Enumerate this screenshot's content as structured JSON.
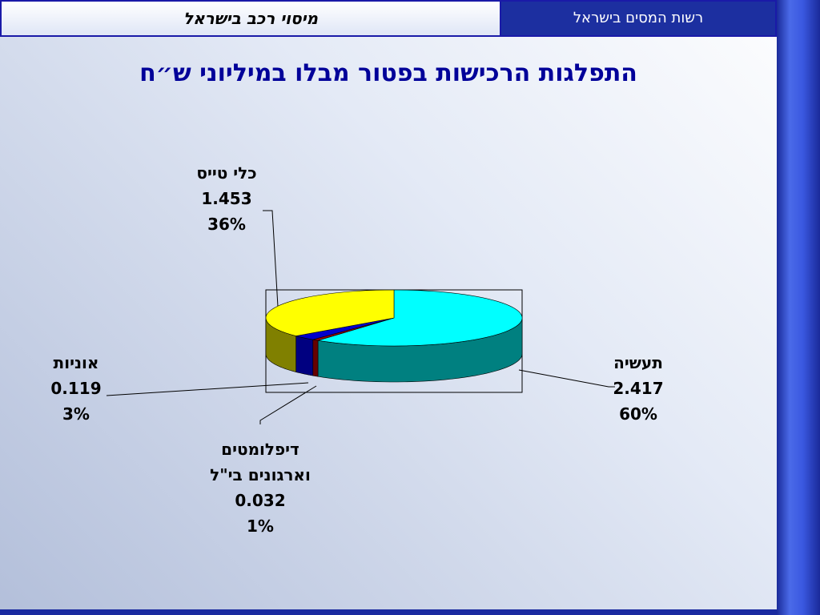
{
  "header": {
    "section": "מיסוי רכב בישראל",
    "organization": "רשות המסים בישראל"
  },
  "chart_data": {
    "type": "pie3d",
    "title": "התפלגות הרכישות בפטור מבלו במיליוני ש״ח",
    "categories": [
      "תעשיה",
      "דיפלומטים\nוארגונים בי\"ל",
      "אוניות",
      "כלי טייס"
    ],
    "values": [
      2.417,
      0.032,
      0.119,
      1.453
    ],
    "percent_labels": [
      "60%",
      "1%",
      "3%",
      "36%"
    ],
    "colors": [
      "#00ffff",
      "#990000",
      "#0000cc",
      "#ffff00"
    ],
    "side_colors": [
      "#008080",
      "#660000",
      "#000080",
      "#808000"
    ]
  }
}
